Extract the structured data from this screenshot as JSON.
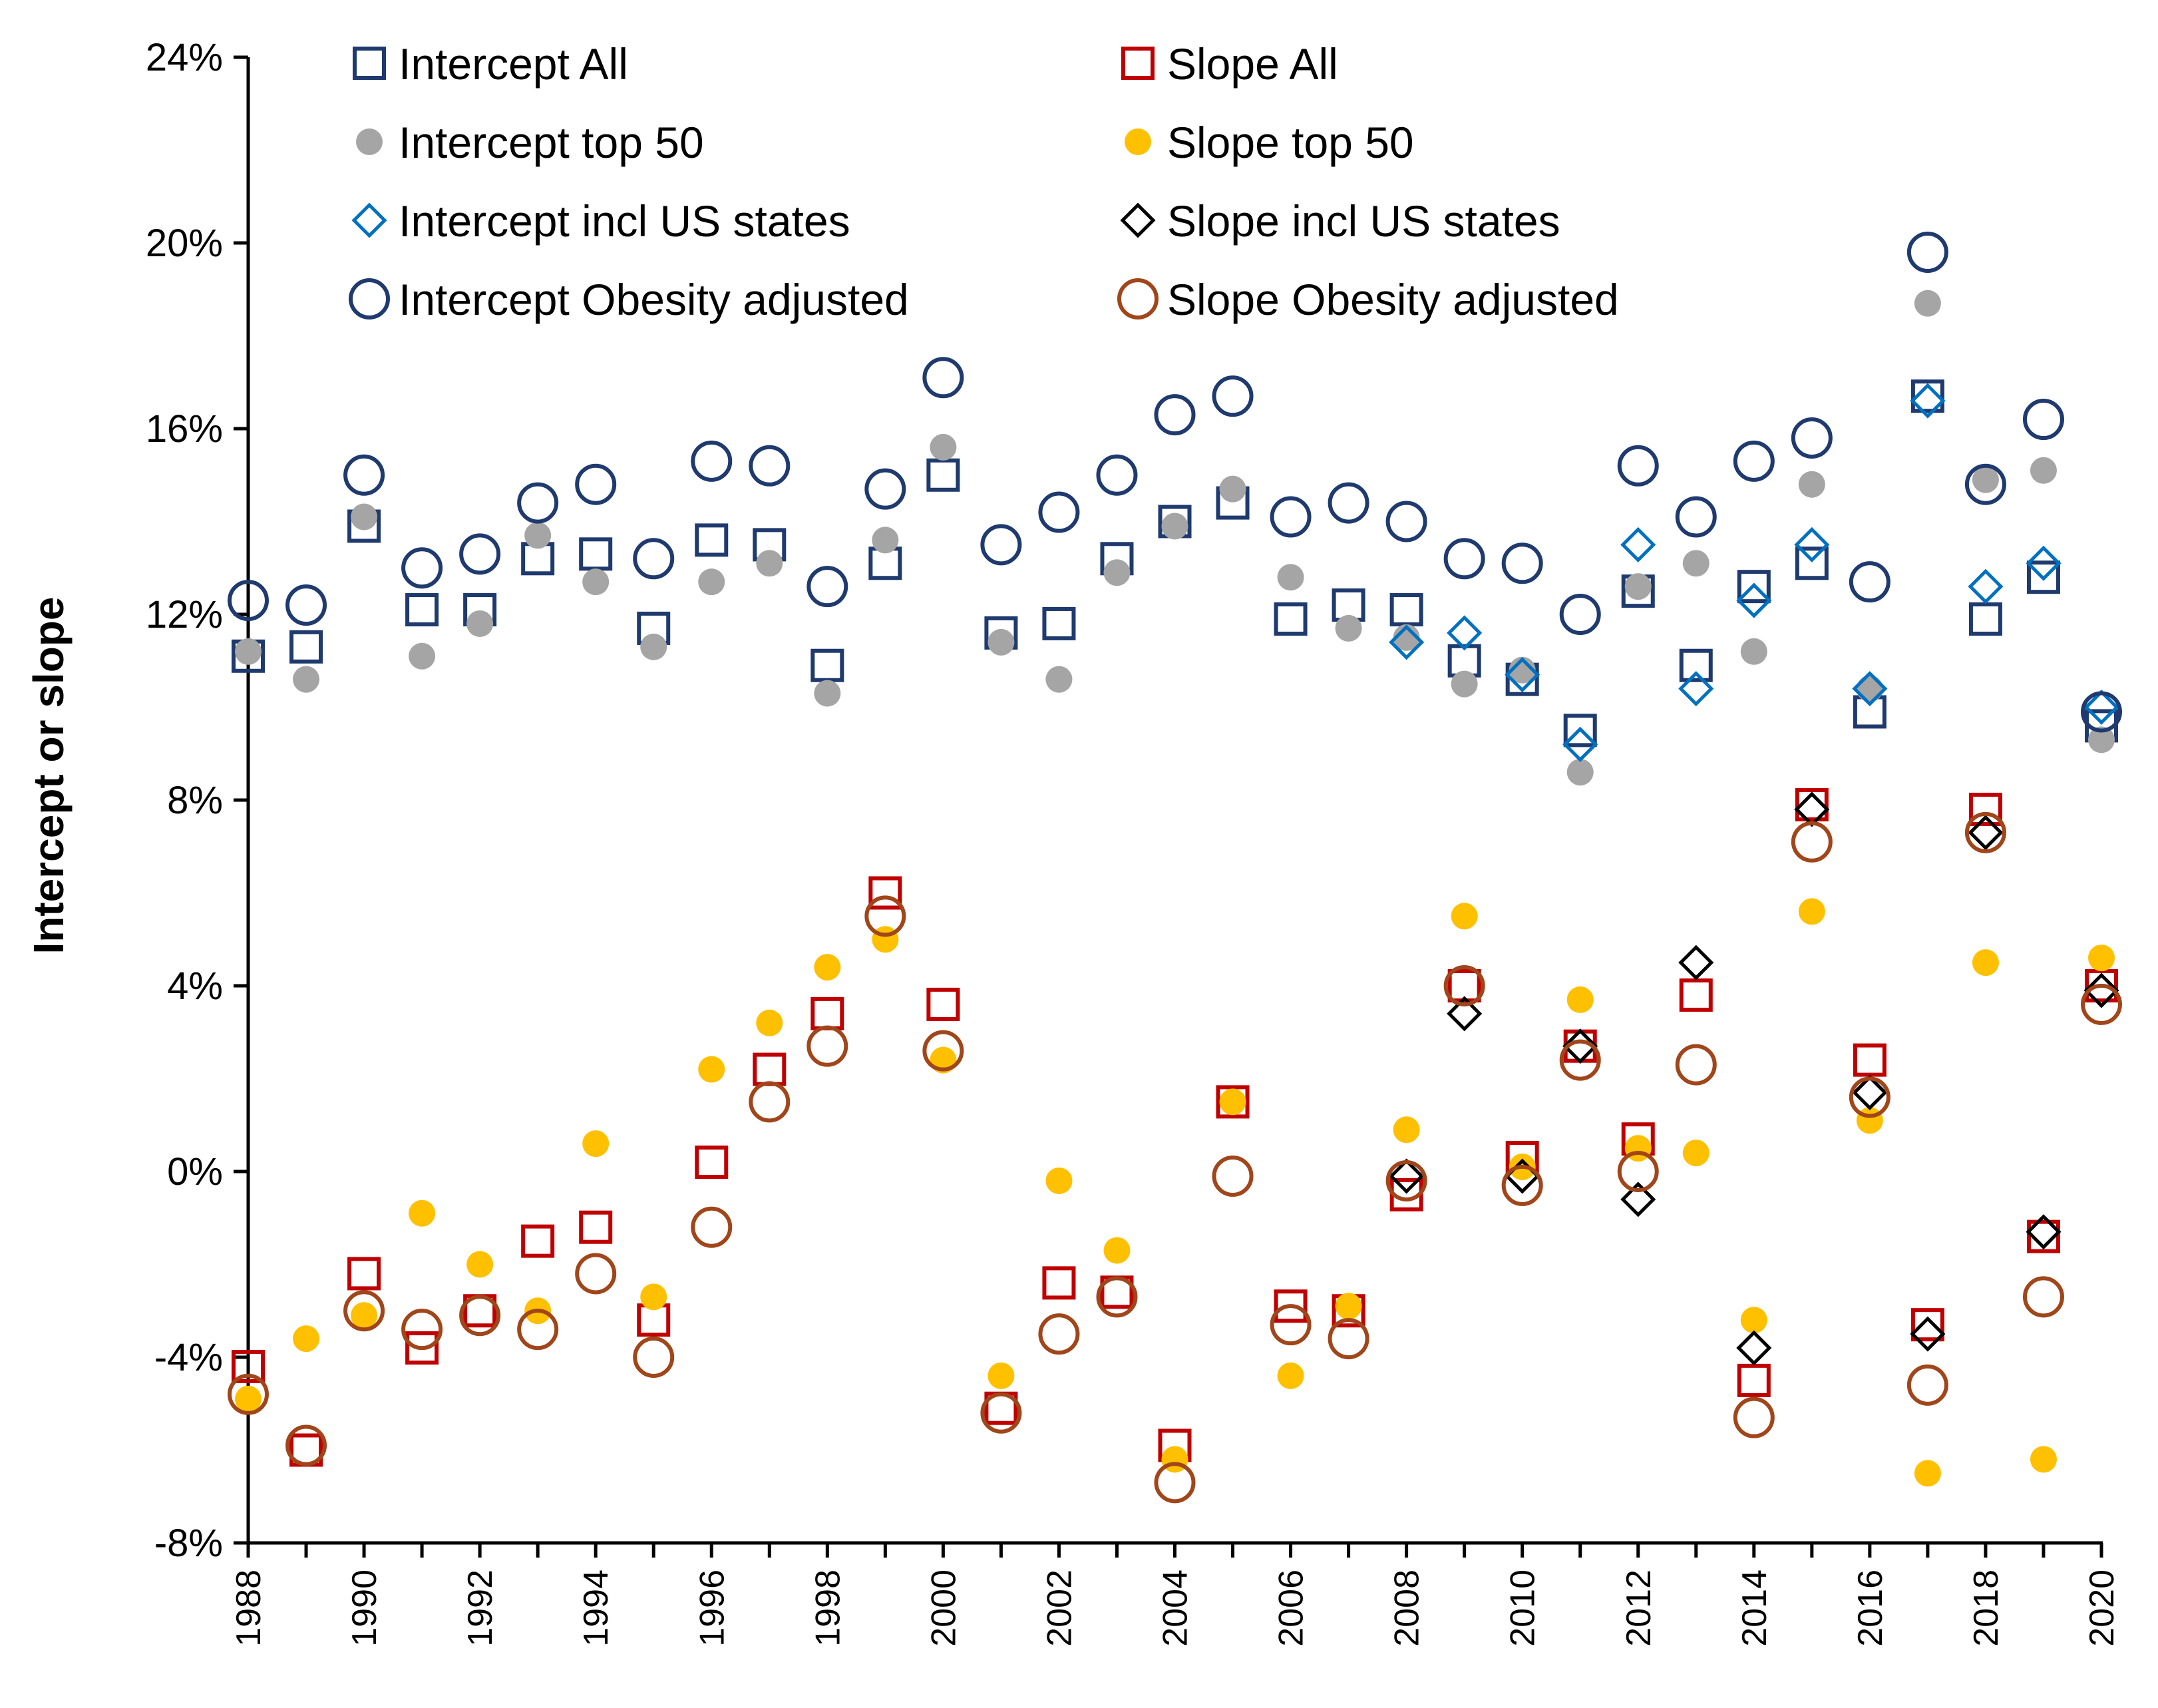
{
  "chart_data": {
    "type": "scatter",
    "title": "",
    "xlabel": "",
    "ylabel": "Intercept or slope",
    "xlim": [
      1988,
      2020
    ],
    "ylim": [
      -8,
      24
    ],
    "ytick_values": [
      -8,
      -4,
      0,
      4,
      8,
      12,
      16,
      20,
      24
    ],
    "ytick_labels": [
      "-8%",
      "-4%",
      "0%",
      "4%",
      "8%",
      "12%",
      "16%",
      "20%",
      "24%"
    ],
    "xtick_values": [
      1988,
      1990,
      1992,
      1994,
      1996,
      1998,
      2000,
      2002,
      2004,
      2006,
      2008,
      2010,
      2012,
      2014,
      2016,
      2018,
      2020
    ],
    "xtick_labels": [
      "1988",
      "1990",
      "1992",
      "1994",
      "1996",
      "1998",
      "2000",
      "2002",
      "2004",
      "2006",
      "2008",
      "2010",
      "2012",
      "2014",
      "2016",
      "2018",
      "2020"
    ],
    "gridlines": false,
    "legend_position": "top",
    "x": [
      1988,
      1989,
      1990,
      1991,
      1992,
      1993,
      1994,
      1995,
      1996,
      1997,
      1998,
      1999,
      2000,
      2001,
      2002,
      2003,
      2004,
      2005,
      2006,
      2007,
      2008,
      2009,
      2010,
      2011,
      2012,
      2013,
      2014,
      2015,
      2016,
      2017,
      2018,
      2019,
      2020
    ],
    "series": [
      {
        "name": "Intercept All",
        "marker": "square-open",
        "color": "#1f3a6e",
        "values": [
          11.1,
          11.3,
          13.9,
          12.1,
          12.1,
          13.2,
          13.3,
          11.7,
          13.6,
          13.5,
          10.9,
          13.1,
          15.0,
          11.6,
          11.8,
          13.2,
          14.0,
          14.4,
          11.9,
          12.2,
          12.1,
          11.0,
          10.6,
          9.5,
          12.5,
          10.9,
          12.6,
          13.1,
          9.9,
          16.7,
          11.9,
          12.8,
          9.6
        ]
      },
      {
        "name": "Slope All",
        "marker": "square-open",
        "color": "#c00000",
        "values": [
          -4.2,
          -6.0,
          -2.2,
          -3.8,
          -3.0,
          -1.5,
          -1.2,
          -3.2,
          0.2,
          2.2,
          3.4,
          6.0,
          3.6,
          -5.1,
          -2.4,
          -2.6,
          -5.9,
          1.5,
          -2.9,
          -3.0,
          -0.5,
          4.0,
          0.3,
          2.7,
          0.7,
          3.8,
          -4.5,
          7.9,
          2.4,
          -3.3,
          7.8,
          -1.4,
          4.0
        ]
      },
      {
        "name": "Intercept top 50",
        "marker": "dot",
        "color": "#a5a5a5",
        "values": [
          11.2,
          10.6,
          14.1,
          11.1,
          11.8,
          13.7,
          12.7,
          11.3,
          12.7,
          13.1,
          10.3,
          13.6,
          15.6,
          11.4,
          10.6,
          12.9,
          13.9,
          14.7,
          12.8,
          11.7,
          11.5,
          10.5,
          10.8,
          8.6,
          12.6,
          13.1,
          11.2,
          14.8,
          10.4,
          18.7,
          14.9,
          15.1,
          9.3
        ]
      },
      {
        "name": "Slope top 50",
        "marker": "dot",
        "color": "#ffc000",
        "values": [
          -4.9,
          -3.6,
          -3.1,
          -0.9,
          -2.0,
          -3.0,
          0.6,
          -2.7,
          2.2,
          3.2,
          4.4,
          5.0,
          2.4,
          -4.4,
          -0.2,
          -1.7,
          -6.2,
          1.5,
          -4.4,
          -2.9,
          0.9,
          5.5,
          0.1,
          3.7,
          0.5,
          0.4,
          -3.2,
          5.6,
          1.1,
          -6.5,
          4.5,
          -6.2,
          4.6
        ]
      },
      {
        "name": "Intercept incl US states",
        "marker": "diamond-open",
        "color": "#0070c0",
        "values": [
          null,
          null,
          null,
          null,
          null,
          null,
          null,
          null,
          null,
          null,
          null,
          null,
          null,
          null,
          null,
          null,
          null,
          null,
          null,
          null,
          11.4,
          11.6,
          10.7,
          9.2,
          13.5,
          10.4,
          12.3,
          13.5,
          10.4,
          16.6,
          12.6,
          13.1,
          10.0
        ]
      },
      {
        "name": "Slope incl US states",
        "marker": "diamond-open",
        "color": "#000000",
        "values": [
          null,
          null,
          null,
          null,
          null,
          null,
          null,
          null,
          null,
          null,
          null,
          null,
          null,
          null,
          null,
          null,
          null,
          null,
          null,
          null,
          -0.1,
          3.4,
          -0.1,
          2.7,
          -0.6,
          4.5,
          -3.8,
          7.8,
          1.7,
          -3.5,
          7.3,
          -1.3,
          3.9
        ]
      },
      {
        "name": "Intercept Obesity adjusted",
        "marker": "circle-open",
        "color": "#1f3a6e",
        "values": [
          12.3,
          12.2,
          15.0,
          13.0,
          13.3,
          14.4,
          14.8,
          13.2,
          15.3,
          15.2,
          12.6,
          14.7,
          17.1,
          13.5,
          14.2,
          15.0,
          16.3,
          16.7,
          14.1,
          14.4,
          14.0,
          13.2,
          13.1,
          12.0,
          15.2,
          14.1,
          15.3,
          15.8,
          12.7,
          19.8,
          14.8,
          16.2,
          9.9
        ]
      },
      {
        "name": "Slope Obesity adjusted",
        "marker": "circle-open",
        "color": "#a0461a",
        "values": [
          -4.8,
          -5.9,
          -3.0,
          -3.4,
          -3.1,
          -3.4,
          -2.2,
          -4.0,
          -1.2,
          1.5,
          2.7,
          5.5,
          2.6,
          -5.2,
          -3.5,
          -2.7,
          -6.7,
          -0.1,
          -3.3,
          -3.6,
          -0.2,
          4.0,
          -0.3,
          2.4,
          0.0,
          2.3,
          -5.3,
          7.1,
          1.6,
          -4.6,
          7.3,
          -2.7,
          3.6
        ]
      }
    ]
  },
  "legend": {
    "items": [
      {
        "label": "Intercept All"
      },
      {
        "label": "Slope All"
      },
      {
        "label": "Intercept top 50"
      },
      {
        "label": "Slope top 50"
      },
      {
        "label": "Intercept incl US states"
      },
      {
        "label": "Slope incl US states"
      },
      {
        "label": "Intercept Obesity adjusted"
      },
      {
        "label": "Slope Obesity adjusted"
      }
    ]
  }
}
